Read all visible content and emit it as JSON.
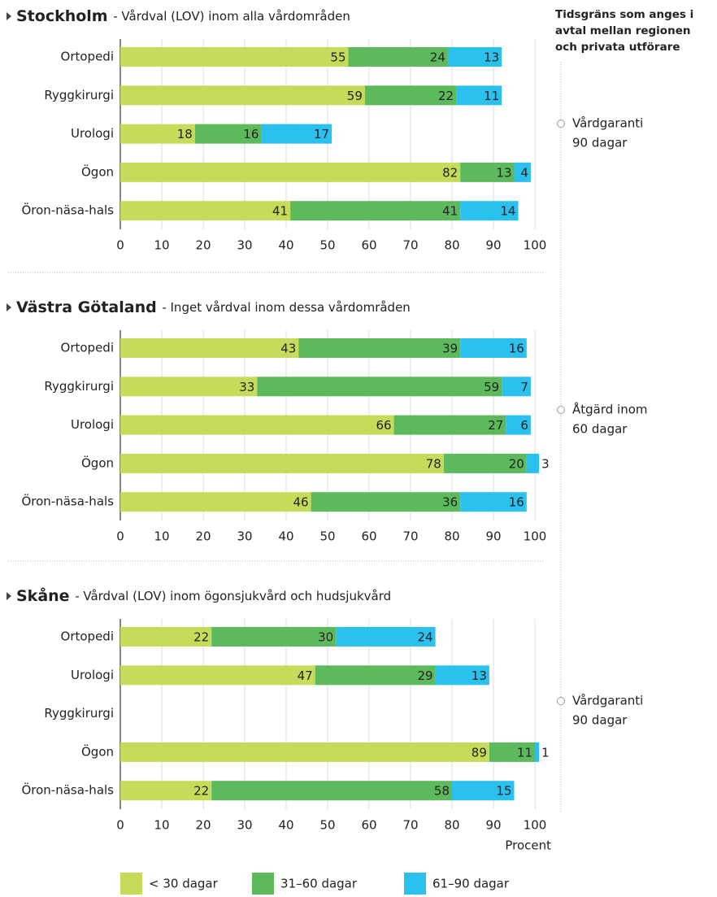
{
  "chart_data": [
    {
      "type": "bar",
      "orientation": "horizontal",
      "stacked": true,
      "title": "Stockholm",
      "subtitle": "- Vårdval (LOV) inom alla vårdområden",
      "categories": [
        "Ortopedi",
        "Ryggkirurgi",
        "Urologi",
        "Ögon",
        "Öron-näsa-hals"
      ],
      "series": [
        {
          "color": "#c5dc5a",
          "values": [
            55,
            59,
            18,
            82,
            41
          ]
        },
        {
          "color": "#5cba5c",
          "values": [
            24,
            22,
            16,
            13,
            41
          ]
        },
        {
          "color": "#2bc1ee",
          "values": [
            13,
            11,
            17,
            4,
            14
          ]
        }
      ],
      "xlim": [
        0,
        100
      ],
      "xticks": [
        0,
        10,
        20,
        30,
        40,
        50,
        60,
        70,
        80,
        90,
        100
      ],
      "grid": true
    },
    {
      "type": "bar",
      "orientation": "horizontal",
      "stacked": true,
      "title": "Västra Götaland",
      "subtitle": "- Inget vårdval inom dessa vårdområden",
      "categories": [
        "Ortopedi",
        "Ryggkirurgi",
        "Urologi",
        "Ögon",
        "Öron-näsa-hals"
      ],
      "series": [
        {
          "color": "#c5dc5a",
          "values": [
            43,
            33,
            66,
            78,
            46
          ]
        },
        {
          "color": "#5cba5c",
          "values": [
            39,
            59,
            27,
            20,
            36
          ]
        },
        {
          "color": "#2bc1ee",
          "values": [
            16,
            7,
            6,
            3,
            16
          ]
        }
      ],
      "xlim": [
        0,
        100
      ],
      "xticks": [
        0,
        10,
        20,
        30,
        40,
        50,
        60,
        70,
        80,
        90,
        100
      ],
      "grid": true
    },
    {
      "type": "bar",
      "orientation": "horizontal",
      "stacked": true,
      "title": "Skåne",
      "subtitle": "- Vårdval (LOV) inom ögonsjukvård och hudsjukvård",
      "categories": [
        "Ortopedi",
        "Urologi",
        "Ryggkirurgi",
        "Ögon",
        "Öron-näsa-hals"
      ],
      "series": [
        {
          "name": "< 30 dagar",
          "color": "#c5dc5a",
          "values": [
            22,
            47,
            null,
            89,
            22
          ]
        },
        {
          "name": "31–60 dagar",
          "color": "#5cba5c",
          "values": [
            30,
            29,
            null,
            11,
            58
          ]
        },
        {
          "name": "61–90 dagar",
          "color": "#2bc1ee",
          "values": [
            24,
            13,
            null,
            1,
            15
          ]
        }
      ],
      "xlim": [
        0,
        100
      ],
      "xticks": [
        0,
        10,
        20,
        30,
        40,
        50,
        60,
        70,
        80,
        90,
        100
      ],
      "grid": true,
      "xlabel": "Procent",
      "legend": "bottom"
    }
  ],
  "side_panel": {
    "heading": [
      "Tidsgräns som anges i",
      "avtal mellan regionen",
      "och privata utförare"
    ],
    "notes": [
      [
        "Vårdgaranti",
        "90 dagar"
      ],
      [
        "Åtgärd inom",
        "60 dagar"
      ],
      [
        "Vårdgaranti",
        "90 dagar"
      ]
    ]
  }
}
